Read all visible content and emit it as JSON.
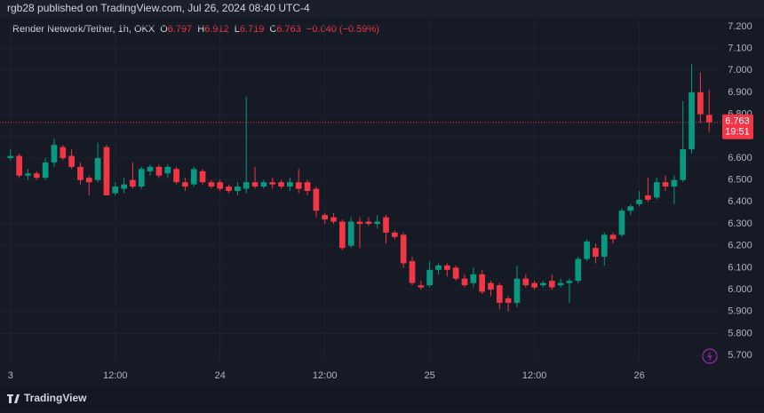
{
  "header": {
    "published": "rgb28 published on TradingView.com, Jul 26, 2024 08:40 UTC-4",
    "brand": "TradingView"
  },
  "chart_data": {
    "type": "candlestick",
    "legend": {
      "symbol": "Render Network/Tether, 1h, OKX",
      "items": [
        {
          "label": "O",
          "value": "6.797"
        },
        {
          "label": "H",
          "value": "6.912"
        },
        {
          "label": "L",
          "value": "6.719"
        },
        {
          "label": "C",
          "value": "6.763"
        }
      ],
      "change": "−0.040 (−0.59%)"
    },
    "up_color": "#089981",
    "down_color": "#f23645",
    "x": [
      0,
      1,
      2,
      3,
      4,
      5,
      6,
      7,
      8,
      9,
      10,
      11,
      12,
      13,
      14,
      15,
      16,
      17,
      18,
      19,
      20,
      21,
      22,
      23,
      24,
      25,
      26,
      27,
      28,
      29,
      30,
      31,
      32,
      33,
      34,
      35,
      36,
      37,
      38,
      39,
      40,
      41,
      42,
      43,
      44,
      45,
      46,
      47,
      48,
      49,
      50,
      51,
      52,
      53,
      54,
      55,
      56,
      57,
      58,
      59,
      60,
      61,
      62,
      63,
      64,
      65,
      66,
      67,
      68,
      69,
      70,
      71,
      72,
      73,
      74,
      75,
      76,
      77,
      78,
      79,
      80
    ],
    "open": [
      6.6,
      6.61,
      6.52,
      6.53,
      6.51,
      6.58,
      6.65,
      6.61,
      6.56,
      6.51,
      6.5,
      6.65,
      6.44,
      6.46,
      6.5,
      6.47,
      6.54,
      6.56,
      6.53,
      6.55,
      6.49,
      6.48,
      6.54,
      6.49,
      6.49,
      6.47,
      6.45,
      6.46,
      6.49,
      6.47,
      6.49,
      6.49,
      6.47,
      6.49,
      6.49,
      6.46,
      6.34,
      6.33,
      6.31,
      6.2,
      6.31,
      6.31,
      6.3,
      6.33,
      6.26,
      6.25,
      6.13,
      6.02,
      6.02,
      6.09,
      6.11,
      6.1,
      6.05,
      6.03,
      6.07,
      6.03,
      6.02,
      5.96,
      5.94,
      6.05,
      6.03,
      6.02,
      6.04,
      6.02,
      6.03,
      6.04,
      6.14,
      6.19,
      6.15,
      6.25,
      6.25,
      6.36,
      6.39,
      6.43,
      6.42,
      6.49,
      6.47,
      6.5,
      6.64,
      6.9,
      6.797
    ],
    "high": [
      6.64,
      6.62,
      6.55,
      6.54,
      6.6,
      6.69,
      6.66,
      6.64,
      6.58,
      6.52,
      6.67,
      6.66,
      6.49,
      6.51,
      6.58,
      6.56,
      6.57,
      6.57,
      6.57,
      6.56,
      6.51,
      6.56,
      6.55,
      6.5,
      6.5,
      6.48,
      6.49,
      6.88,
      6.56,
      6.5,
      6.51,
      6.5,
      6.51,
      6.55,
      6.5,
      6.47,
      6.35,
      6.35,
      6.32,
      6.33,
      6.33,
      6.33,
      6.34,
      6.34,
      6.27,
      6.26,
      6.15,
      6.04,
      6.13,
      6.12,
      6.12,
      6.11,
      6.07,
      6.1,
      6.09,
      6.04,
      6.03,
      5.97,
      6.11,
      6.07,
      6.04,
      6.04,
      6.07,
      6.05,
      6.05,
      6.15,
      6.23,
      6.21,
      6.26,
      6.26,
      6.37,
      6.39,
      6.45,
      6.51,
      6.51,
      6.52,
      6.52,
      6.86,
      7.03,
      6.99,
      6.912
    ],
    "low": [
      6.59,
      6.51,
      6.5,
      6.5,
      6.5,
      6.56,
      6.59,
      6.55,
      6.48,
      6.43,
      6.49,
      6.43,
      6.43,
      6.44,
      6.46,
      6.46,
      6.52,
      6.51,
      6.51,
      6.48,
      6.45,
      6.47,
      6.48,
      6.46,
      6.45,
      6.44,
      6.43,
      6.44,
      6.46,
      6.46,
      6.46,
      6.46,
      6.45,
      6.44,
      6.43,
      6.33,
      6.3,
      6.3,
      6.18,
      6.19,
      6.19,
      6.29,
      6.28,
      6.21,
      6.23,
      6.1,
      6.02,
      6.0,
      6.01,
      6.07,
      6.06,
      6.04,
      6.01,
      6.01,
      5.98,
      5.97,
      5.91,
      5.9,
      5.92,
      6.01,
      6.0,
      6.01,
      6.0,
      6.01,
      5.94,
      6.03,
      6.13,
      6.12,
      6.11,
      6.21,
      6.24,
      6.34,
      6.38,
      6.4,
      6.41,
      6.45,
      6.39,
      6.49,
      6.62,
      6.76,
      6.719
    ],
    "close": [
      6.61,
      6.52,
      6.53,
      6.51,
      6.58,
      6.66,
      6.6,
      6.56,
      6.5,
      6.49,
      6.6,
      6.43,
      6.47,
      6.48,
      6.47,
      6.55,
      6.56,
      6.52,
      6.56,
      6.49,
      6.47,
      6.55,
      6.49,
      6.47,
      6.46,
      6.45,
      6.47,
      6.49,
      6.47,
      6.49,
      6.48,
      6.47,
      6.49,
      6.46,
      6.45,
      6.36,
      6.32,
      6.31,
      6.19,
      6.31,
      6.3,
      6.3,
      6.31,
      6.26,
      6.24,
      6.12,
      6.03,
      6.01,
      6.09,
      6.11,
      6.09,
      6.05,
      6.02,
      6.07,
      5.99,
      6.0,
      5.94,
      5.94,
      6.05,
      6.02,
      6.01,
      6.03,
      6.01,
      6.03,
      6.04,
      6.14,
      6.22,
      6.15,
      6.25,
      6.23,
      6.36,
      6.38,
      6.41,
      6.41,
      6.49,
      6.47,
      6.5,
      6.64,
      6.9,
      6.8,
      6.763
    ],
    "xlim": [
      -1.2,
      81.4
    ],
    "xticks": [
      {
        "value": 0,
        "label": "3"
      },
      {
        "value": 12,
        "label": "12:00"
      },
      {
        "value": 24,
        "label": "24"
      },
      {
        "value": 36,
        "label": "12:00"
      },
      {
        "value": 48,
        "label": "25"
      },
      {
        "value": 60,
        "label": "12:00"
      },
      {
        "value": 72,
        "label": "26"
      }
    ],
    "ylim": [
      5.66,
      7.24
    ],
    "yticks": [
      {
        "value": 5.7,
        "label": "5.700"
      },
      {
        "value": 5.8,
        "label": "5.800"
      },
      {
        "value": 5.9,
        "label": "5.900"
      },
      {
        "value": 6.0,
        "label": "6.000"
      },
      {
        "value": 6.1,
        "label": "6.100"
      },
      {
        "value": 6.2,
        "label": "6.200"
      },
      {
        "value": 6.3,
        "label": "6.300"
      },
      {
        "value": 6.4,
        "label": "6.400"
      },
      {
        "value": 6.5,
        "label": "6.500"
      },
      {
        "value": 6.6,
        "label": "6.600"
      },
      {
        "value": 6.7,
        "label": "6.700"
      },
      {
        "value": 6.8,
        "label": "6.800"
      },
      {
        "value": 6.9,
        "label": "6.900"
      },
      {
        "value": 7.0,
        "label": "7.000"
      },
      {
        "value": 7.1,
        "label": "7.100"
      },
      {
        "value": 7.2,
        "label": "7.200"
      }
    ],
    "grid": true,
    "last_price": {
      "value": 6.763,
      "countdown": "19:51",
      "color": "#f23645"
    }
  }
}
